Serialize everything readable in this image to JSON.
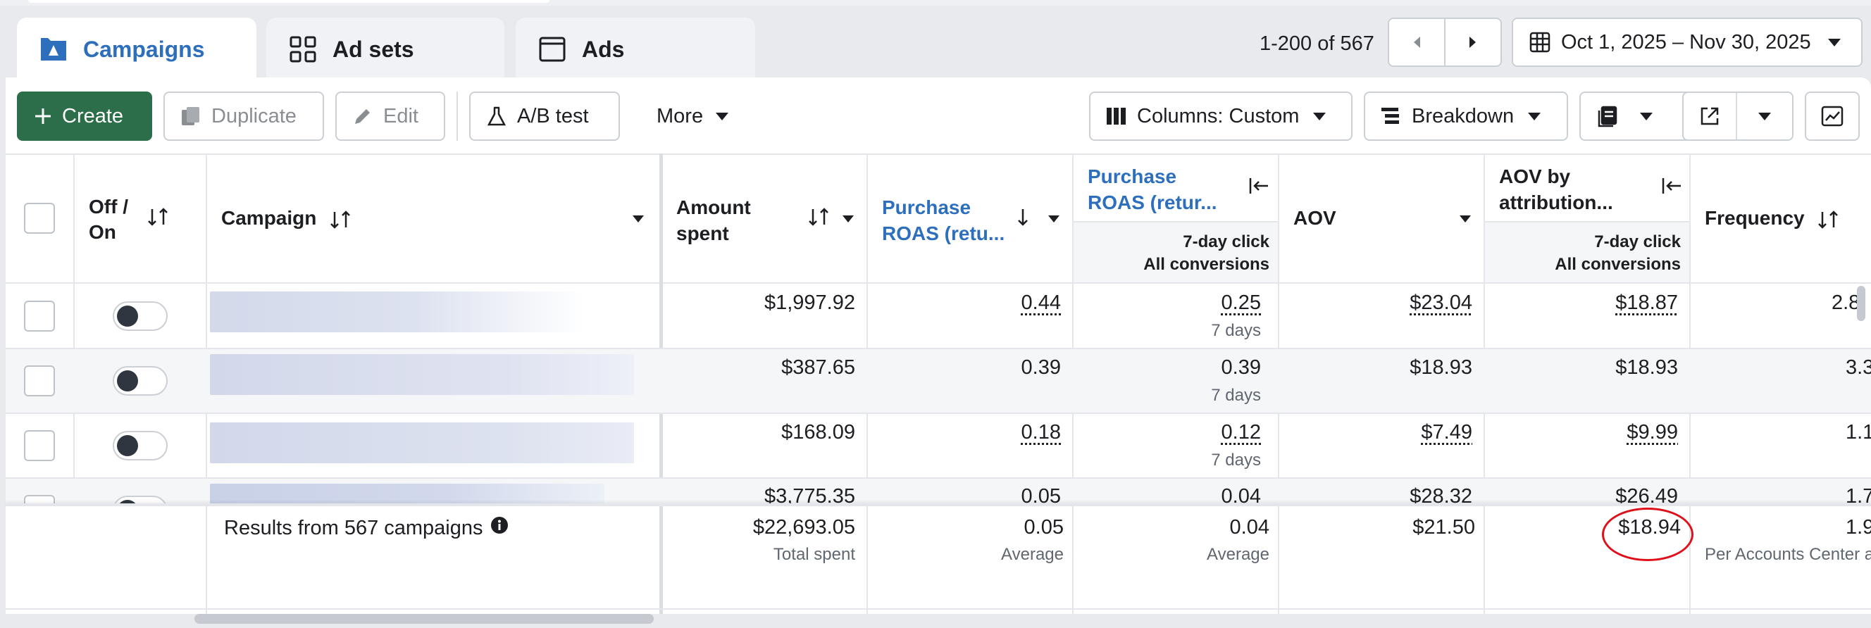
{
  "tabs": [
    {
      "label": "Campaigns",
      "icon": "campaigns-icon",
      "active": true
    },
    {
      "label": "Ad sets",
      "icon": "adsets-grid-icon",
      "active": false
    },
    {
      "label": "Ads",
      "icon": "ads-window-icon",
      "active": false
    }
  ],
  "pager": {
    "range": "1-200 of 567",
    "prev": "previous-page",
    "next": "next-page"
  },
  "date_range": "Oct 1, 2025 – Nov 30, 2025",
  "toolbar": {
    "create": "Create",
    "duplicate": "Duplicate",
    "edit": "Edit",
    "ab_test": "A/B test",
    "more": "More",
    "columns": "Columns: Custom",
    "breakdown": "Breakdown"
  },
  "columns": {
    "off_on_1": "Off /",
    "off_on_2": "On",
    "campaign": "Campaign",
    "amount_spent_1": "Amount",
    "amount_spent_2": "spent",
    "purchase_roas_1": "Purchase",
    "purchase_roas_2": "ROAS (retu...",
    "purchase_roas_b_1": "Purchase",
    "purchase_roas_b_2": "ROAS (retur...",
    "roas_b_sub_1": "7-day click",
    "roas_b_sub_2": "All conversions",
    "aov": "AOV",
    "aov_attr_1": "AOV by",
    "aov_attr_2": "attribution...",
    "aov_attr_sub_1": "7-day click",
    "aov_attr_sub_2": "All conversions",
    "frequency": "Frequency"
  },
  "rows": [
    {
      "amount": "$1,997.92",
      "roas": "0.44",
      "roas_b": "0.25",
      "roas_b_sub": "7 days",
      "aov": "$23.04",
      "aov_attr": "$18.87",
      "freq": "2.8"
    },
    {
      "amount": "$387.65",
      "roas": "0.39",
      "roas_b": "0.39",
      "roas_b_sub": "7 days",
      "aov": "$18.93",
      "aov_attr": "$18.93",
      "freq": "3.3"
    },
    {
      "amount": "$168.09",
      "roas": "0.18",
      "roas_b": "0.12",
      "roas_b_sub": "7 days",
      "aov": "$7.49",
      "aov_attr": "$9.99",
      "freq": "1.1"
    },
    {
      "amount": "$3,775.35",
      "roas": "0.05",
      "roas_b": "0.04",
      "aov": "$28.32",
      "aov_attr": "$26.49",
      "freq": "1.7"
    }
  ],
  "summary": {
    "label": "Results from 567 campaigns",
    "amount": "$22,693.05",
    "amount_sub": "Total spent",
    "roas": "0.05",
    "roas_sub": "Average",
    "roas_b": "0.04",
    "roas_b_sub": "Average",
    "aov": "$21.50",
    "aov_attr": "$18.94",
    "freq": "1.9",
    "freq_sub": "Per Accounts Center a"
  },
  "colors": {
    "accent_blue": "#2e6fbd",
    "create_green": "#2c6e49",
    "highlight_red": "#e0101a"
  }
}
